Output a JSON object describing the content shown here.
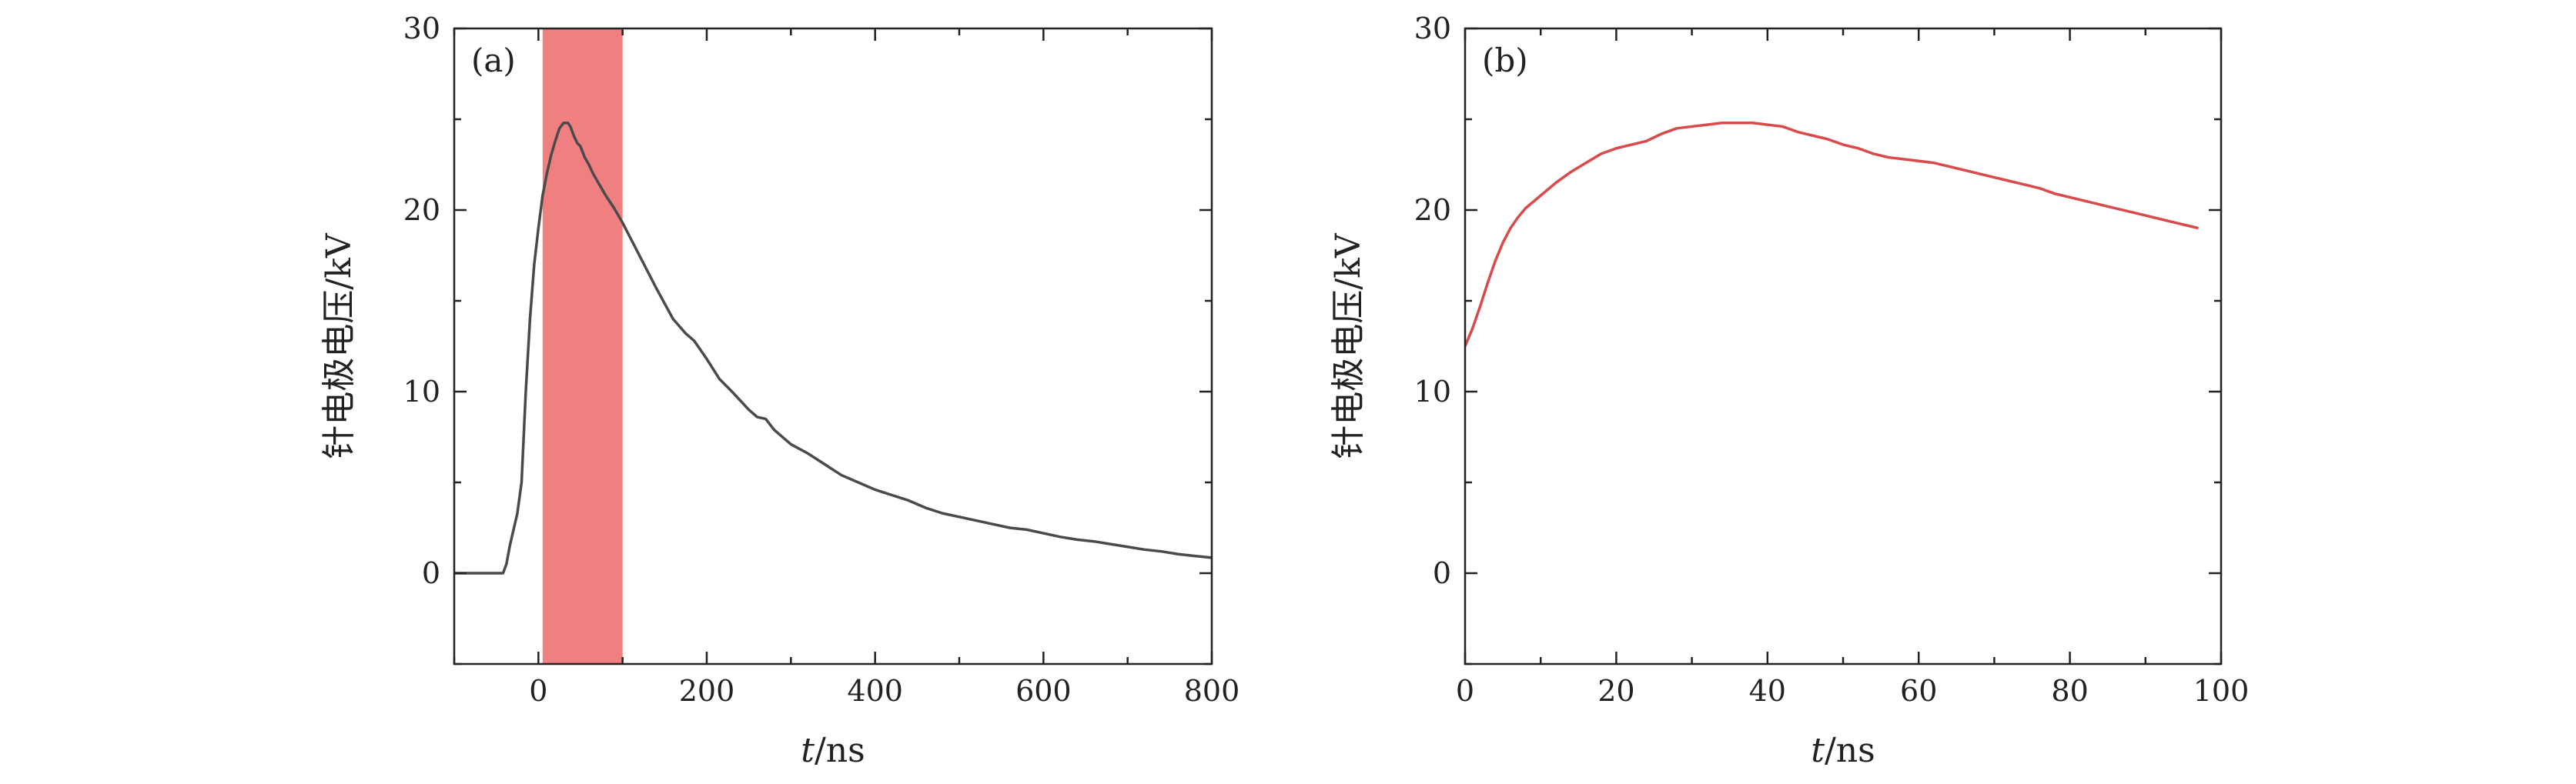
{
  "chart_data": [
    {
      "type": "line",
      "panel_label": "(a)",
      "xlabel": "t/ns",
      "ylabel": "针电极电压/kV",
      "xlim": [
        -100,
        800
      ],
      "ylim": [
        -5,
        30
      ],
      "x_ticks": [
        0,
        200,
        400,
        600,
        800
      ],
      "y_ticks": [
        0,
        10,
        20,
        30
      ],
      "grid": false,
      "highlight_span": {
        "x": [
          5,
          100
        ],
        "color": "#f08080"
      },
      "series": [
        {
          "color": "#4a4a4a",
          "x": [
            -100,
            -60,
            -42,
            -38,
            -34,
            -30,
            -25,
            -20,
            -15,
            -10,
            -5,
            0,
            5,
            10,
            15,
            20,
            25,
            30,
            35,
            38,
            42,
            46,
            50,
            55,
            60,
            65,
            70,
            80,
            90,
            100,
            110,
            120,
            140,
            160,
            175,
            185,
            200,
            215,
            230,
            250,
            260,
            270,
            280,
            300,
            320,
            340,
            360,
            380,
            400,
            420,
            440,
            460,
            480,
            500,
            520,
            540,
            560,
            580,
            600,
            620,
            640,
            660,
            680,
            700,
            720,
            740,
            760,
            780,
            800
          ],
          "y": [
            0,
            0,
            0,
            0.5,
            1.5,
            2.3,
            3.3,
            5,
            10,
            14,
            17,
            19,
            20.8,
            22,
            23,
            23.8,
            24.5,
            24.8,
            24.8,
            24.6,
            24.1,
            23.7,
            23.5,
            22.9,
            22.5,
            22,
            21.6,
            20.8,
            20.1,
            19.3,
            18.4,
            17.5,
            15.7,
            14,
            13.2,
            12.8,
            11.8,
            10.7,
            10,
            9,
            8.6,
            8.5,
            7.9,
            7.1,
            6.6,
            6.0,
            5.4,
            5.0,
            4.6,
            4.3,
            4.0,
            3.6,
            3.3,
            3.1,
            2.9,
            2.7,
            2.5,
            2.4,
            2.2,
            2.0,
            1.85,
            1.75,
            1.6,
            1.45,
            1.3,
            1.2,
            1.05,
            0.95,
            0.85
          ]
        }
      ]
    },
    {
      "type": "line",
      "panel_label": "(b)",
      "xlabel": "t/ns",
      "ylabel": "针电极电压/kV",
      "xlim": [
        0,
        100
      ],
      "ylim": [
        -5,
        30
      ],
      "x_ticks": [
        0,
        20,
        40,
        60,
        80,
        100
      ],
      "y_ticks": [
        0,
        10,
        20,
        30
      ],
      "grid": false,
      "series": [
        {
          "color": "#d94a4a",
          "x": [
            0,
            1,
            2,
            3,
            4,
            5,
            6,
            7,
            8,
            10,
            12,
            14,
            16,
            18,
            20,
            22,
            24,
            26,
            28,
            30,
            32,
            34,
            36,
            38,
            40,
            42,
            44,
            46,
            48,
            50,
            52,
            54,
            56,
            58,
            60,
            62,
            64,
            66,
            68,
            70,
            72,
            74,
            76,
            78,
            80,
            82,
            84,
            86,
            88,
            90,
            92,
            94,
            96,
            97
          ],
          "y": [
            12.5,
            13.5,
            14.7,
            16,
            17.2,
            18.2,
            19.0,
            19.6,
            20.1,
            20.8,
            21.5,
            22.1,
            22.6,
            23.1,
            23.4,
            23.6,
            23.8,
            24.2,
            24.5,
            24.6,
            24.7,
            24.8,
            24.8,
            24.8,
            24.7,
            24.6,
            24.3,
            24.1,
            23.9,
            23.6,
            23.4,
            23.1,
            22.9,
            22.8,
            22.7,
            22.6,
            22.4,
            22.2,
            22.0,
            21.8,
            21.6,
            21.4,
            21.2,
            20.9,
            20.7,
            20.5,
            20.3,
            20.1,
            19.9,
            19.7,
            19.5,
            19.3,
            19.1,
            19.0
          ]
        }
      ]
    }
  ]
}
